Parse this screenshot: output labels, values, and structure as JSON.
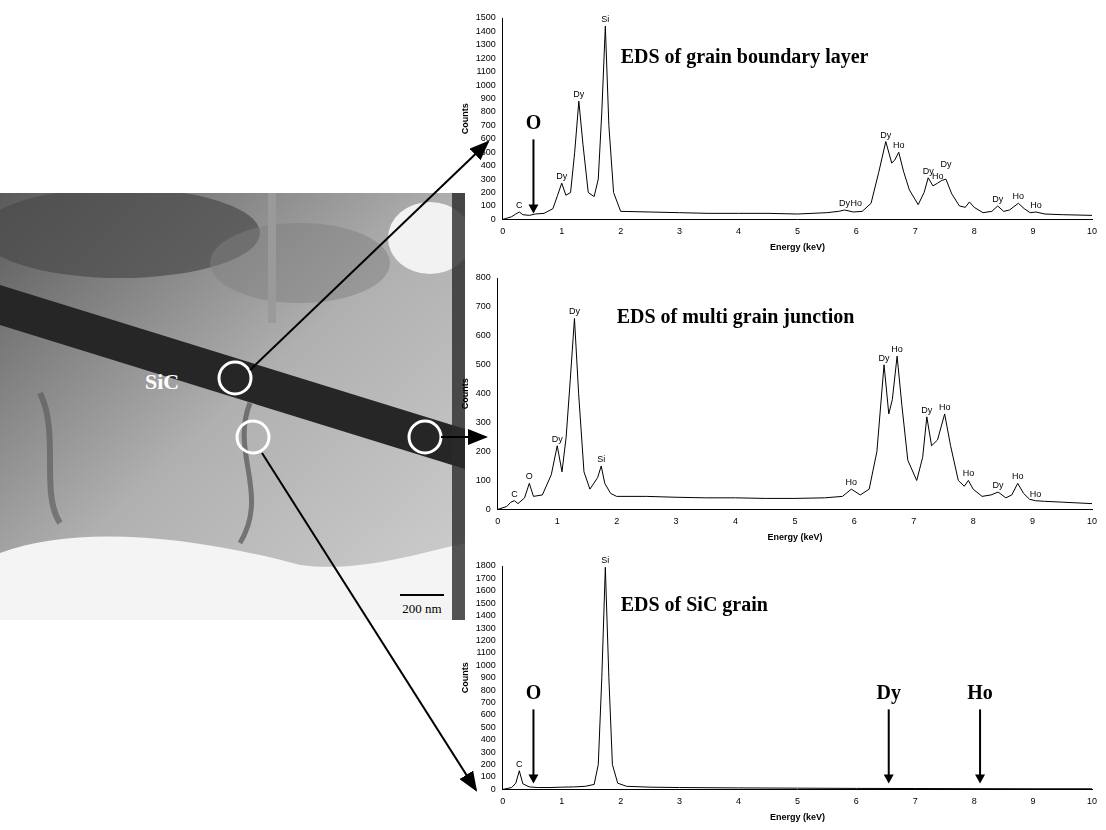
{
  "micrograph": {
    "label": "SiC",
    "scale_bar": "200 nm"
  },
  "chart_data": [
    {
      "type": "line",
      "title": "EDS of grain boundary layer",
      "x_label": "Energy (keV)",
      "y_label": "Counts",
      "x": [
        0,
        0.15,
        0.22,
        0.28,
        0.34,
        0.45,
        0.55,
        0.7,
        0.85,
        0.93,
        1.0,
        1.07,
        1.15,
        1.22,
        1.29,
        1.36,
        1.45,
        1.55,
        1.62,
        1.68,
        1.74,
        1.8,
        1.88,
        2.0,
        2.5,
        3,
        3.5,
        4,
        4.5,
        5,
        5.5,
        5.7,
        5.8,
        5.95,
        6.1,
        6.25,
        6.38,
        6.5,
        6.6,
        6.65,
        6.72,
        6.8,
        6.9,
        7.05,
        7.15,
        7.22,
        7.3,
        7.38,
        7.45,
        7.52,
        7.62,
        7.75,
        7.85,
        7.92,
        8.0,
        8.15,
        8.3,
        8.4,
        8.5,
        8.6,
        8.75,
        8.85,
        8.95,
        9.05,
        9.2,
        9.5,
        10
      ],
      "values": [
        0,
        20,
        40,
        55,
        35,
        30,
        40,
        45,
        80,
        180,
        270,
        180,
        200,
        500,
        880,
        560,
        200,
        170,
        300,
        800,
        1440,
        700,
        200,
        60,
        55,
        50,
        45,
        45,
        45,
        40,
        50,
        60,
        70,
        55,
        60,
        120,
        350,
        580,
        420,
        440,
        500,
        360,
        220,
        110,
        200,
        310,
        250,
        270,
        290,
        300,
        190,
        100,
        90,
        130,
        90,
        50,
        60,
        100,
        60,
        70,
        120,
        80,
        50,
        55,
        40,
        35,
        30
      ],
      "color": "#000000",
      "xlim": [
        0,
        10
      ],
      "xticks": [
        0,
        1,
        2,
        3,
        4,
        5,
        6,
        7,
        8,
        9,
        10
      ],
      "ylim": [
        0,
        1500
      ],
      "yticks": [
        0,
        100,
        200,
        300,
        400,
        500,
        600,
        700,
        800,
        900,
        1000,
        1100,
        1200,
        1300,
        1400,
        1500
      ],
      "grid": false,
      "peak_labels": [
        {
          "text": "C",
          "x": 0.28,
          "y": 55
        },
        {
          "text": "Dy",
          "x": 1.0,
          "y": 270
        },
        {
          "text": "Dy",
          "x": 1.29,
          "y": 880
        },
        {
          "text": "Si",
          "x": 1.74,
          "y": 1440
        },
        {
          "text": "Dy",
          "x": 5.8,
          "y": 70
        },
        {
          "text": "Ho",
          "x": 6.0,
          "y": 70
        },
        {
          "text": "Dy",
          "x": 6.5,
          "y": 580
        },
        {
          "text": "Ho",
          "x": 6.72,
          "y": 500
        },
        {
          "text": "Dy",
          "x": 7.22,
          "y": 310
        },
        {
          "text": "Ho",
          "x": 7.38,
          "y": 270
        },
        {
          "text": "Dy",
          "x": 7.52,
          "y": 360
        },
        {
          "text": "Dy",
          "x": 8.4,
          "y": 100
        },
        {
          "text": "Ho",
          "x": 8.75,
          "y": 120
        },
        {
          "text": "Ho",
          "x": 9.05,
          "y": 55
        }
      ],
      "annotations": [
        {
          "text": "O",
          "x": 0.52
        }
      ]
    },
    {
      "type": "line",
      "title": "EDS of multi grain junction",
      "x_label": "Energy (keV)",
      "y_label": "Counts",
      "x": [
        0,
        0.15,
        0.22,
        0.28,
        0.34,
        0.45,
        0.53,
        0.6,
        0.75,
        0.9,
        1.0,
        1.08,
        1.15,
        1.22,
        1.29,
        1.36,
        1.45,
        1.55,
        1.68,
        1.74,
        1.8,
        1.9,
        2.0,
        2.5,
        3,
        3.5,
        4,
        4.5,
        5,
        5.5,
        5.8,
        5.95,
        6.1,
        6.25,
        6.38,
        6.5,
        6.58,
        6.64,
        6.72,
        6.8,
        6.9,
        7.05,
        7.15,
        7.22,
        7.3,
        7.4,
        7.52,
        7.62,
        7.75,
        7.85,
        7.92,
        8.0,
        8.15,
        8.3,
        8.42,
        8.55,
        8.65,
        8.75,
        8.85,
        8.95,
        9.05,
        9.2,
        9.5,
        10
      ],
      "values": [
        0,
        10,
        25,
        30,
        20,
        40,
        90,
        45,
        50,
        120,
        220,
        130,
        250,
        450,
        660,
        400,
        130,
        70,
        110,
        150,
        90,
        55,
        45,
        45,
        42,
        40,
        40,
        38,
        38,
        40,
        45,
        70,
        50,
        70,
        200,
        500,
        330,
        380,
        530,
        360,
        170,
        100,
        180,
        320,
        220,
        240,
        330,
        220,
        100,
        80,
        100,
        70,
        45,
        50,
        60,
        40,
        50,
        90,
        55,
        35,
        30,
        28,
        25,
        20
      ],
      "color": "#000000",
      "xlim": [
        0,
        10
      ],
      "xticks": [
        0,
        1,
        2,
        3,
        4,
        5,
        6,
        7,
        8,
        9,
        10
      ],
      "ylim": [
        0,
        800
      ],
      "yticks": [
        0,
        100,
        200,
        300,
        400,
        500,
        600,
        700,
        800
      ],
      "grid": false,
      "peak_labels": [
        {
          "text": "C",
          "x": 0.28,
          "y": 30
        },
        {
          "text": "O",
          "x": 0.53,
          "y": 90
        },
        {
          "text": "Dy",
          "x": 1.0,
          "y": 220
        },
        {
          "text": "Dy",
          "x": 1.29,
          "y": 660
        },
        {
          "text": "Si",
          "x": 1.74,
          "y": 150
        },
        {
          "text": "Ho",
          "x": 5.95,
          "y": 70
        },
        {
          "text": "Dy",
          "x": 6.5,
          "y": 500
        },
        {
          "text": "Ho",
          "x": 6.72,
          "y": 530
        },
        {
          "text": "Dy",
          "x": 7.22,
          "y": 320
        },
        {
          "text": "Ho",
          "x": 7.52,
          "y": 330
        },
        {
          "text": "Ho",
          "x": 7.92,
          "y": 100
        },
        {
          "text": "Dy",
          "x": 8.42,
          "y": 60
        },
        {
          "text": "Ho",
          "x": 8.75,
          "y": 90
        },
        {
          "text": "Ho",
          "x": 9.05,
          "y": 30
        }
      ],
      "annotations": []
    },
    {
      "type": "line",
      "title": "EDS of SiC grain",
      "x_label": "Energy (keV)",
      "y_label": "Counts",
      "x": [
        0,
        0.15,
        0.22,
        0.28,
        0.34,
        0.45,
        0.6,
        0.8,
        1.0,
        1.2,
        1.4,
        1.55,
        1.62,
        1.68,
        1.74,
        1.8,
        1.86,
        1.95,
        2.1,
        2.5,
        3,
        4,
        5,
        6,
        7,
        8,
        9,
        10
      ],
      "values": [
        0,
        15,
        50,
        150,
        45,
        20,
        15,
        15,
        18,
        20,
        25,
        40,
        200,
        900,
        1790,
        900,
        200,
        50,
        25,
        18,
        15,
        12,
        10,
        8,
        7,
        6,
        5,
        5
      ],
      "color": "#000000",
      "xlim": [
        0,
        10
      ],
      "xticks": [
        0,
        1,
        2,
        3,
        4,
        5,
        6,
        7,
        8,
        9,
        10
      ],
      "ylim": [
        0,
        1800
      ],
      "yticks": [
        0,
        100,
        200,
        300,
        400,
        500,
        600,
        700,
        800,
        900,
        1000,
        1100,
        1200,
        1300,
        1400,
        1500,
        1600,
        1700,
        1800
      ],
      "grid": false,
      "peak_labels": [
        {
          "text": "C",
          "x": 0.28,
          "y": 150
        },
        {
          "text": "Si",
          "x": 1.74,
          "y": 1790
        }
      ],
      "annotations": [
        {
          "text": "O",
          "x": 0.52
        },
        {
          "text": "Dy",
          "x": 6.55
        },
        {
          "text": "Ho",
          "x": 8.1
        }
      ]
    }
  ]
}
